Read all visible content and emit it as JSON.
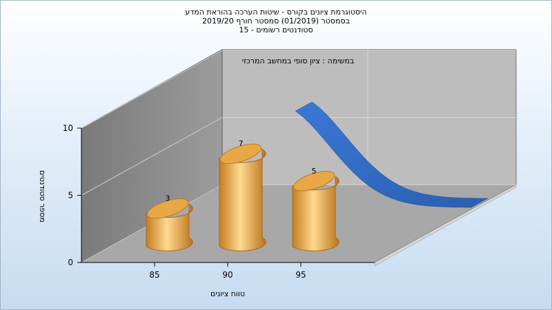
{
  "titles": [
    "היסטוגרמת ציונים בקורס - שיטות הערכה בהוראת המדע",
    "בסמסטר  (01/2019)  סמסטר חורף  2019/20",
    "סטודנטים רשומים - 15"
  ],
  "chart_data": {
    "type": "bar",
    "title": "היסטוגרמת ציונים בקורס - שיטות הערכה בהוראת המדע",
    "subtitle": "בסמסטר  (01/2019)  סמסטר חורף  2019/20 | סטודנטים רשומים - 15",
    "xlabel": "טווח ציונים",
    "ylabel": "מספר סטודנטים",
    "categories": [
      "85",
      "90",
      "95"
    ],
    "series": [
      {
        "name": "במשימה : ציון סופי במחשב המרכזי",
        "values": [
          3,
          7,
          5
        ]
      }
    ],
    "y_ticks": [
      "0",
      "5",
      "10"
    ],
    "x_ticks": [
      "85",
      "90",
      "95"
    ],
    "ylim": [
      0,
      10
    ],
    "curve_style": "3D ribbon (normal curve overlay)",
    "legend_text": "במשימה : ציון סופי במחשב המרכזי",
    "colors": {
      "bar": "#e0a448",
      "curve": "#3169c0",
      "back_wall": "#bdbdbd",
      "side_wall": "#8c8c8c",
      "floor": "#a8a8a8"
    },
    "grid": true
  }
}
